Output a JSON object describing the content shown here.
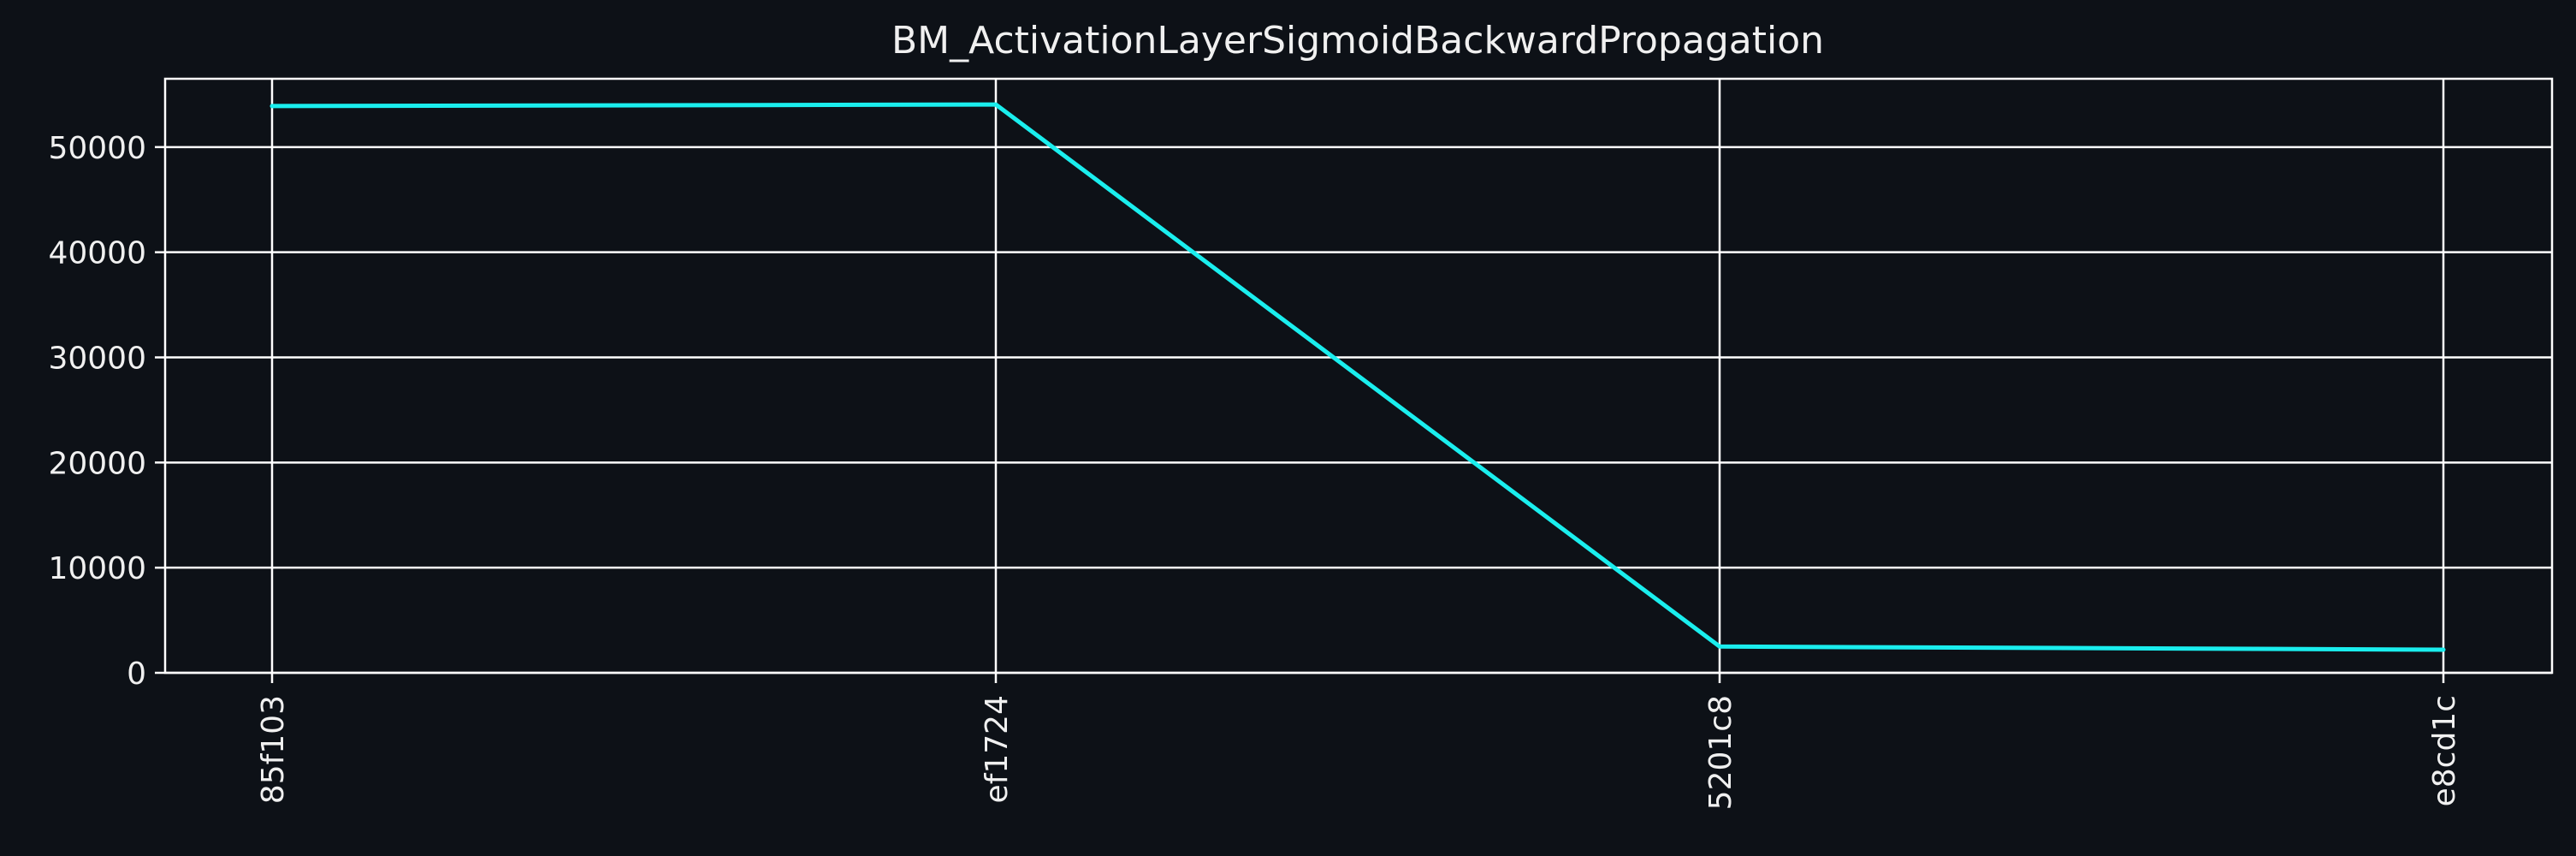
{
  "chart_data": {
    "type": "line",
    "title": "BM_ActivationLayerSigmoidBackwardPropagation",
    "xlabel": "",
    "ylabel": "",
    "categories": [
      "85f103",
      "ef1724",
      "5201c8",
      "e8cd1c"
    ],
    "series": [
      {
        "values": [
          53900,
          54050,
          2500,
          2200
        ],
        "color": "#1aeeee"
      }
    ],
    "ylim": [
      0,
      56500
    ],
    "yticks": [
      0,
      10000,
      20000,
      30000,
      40000,
      50000
    ],
    "grid": true,
    "legend": "none",
    "background": "#0d1117",
    "foreground": "#ffffff"
  }
}
